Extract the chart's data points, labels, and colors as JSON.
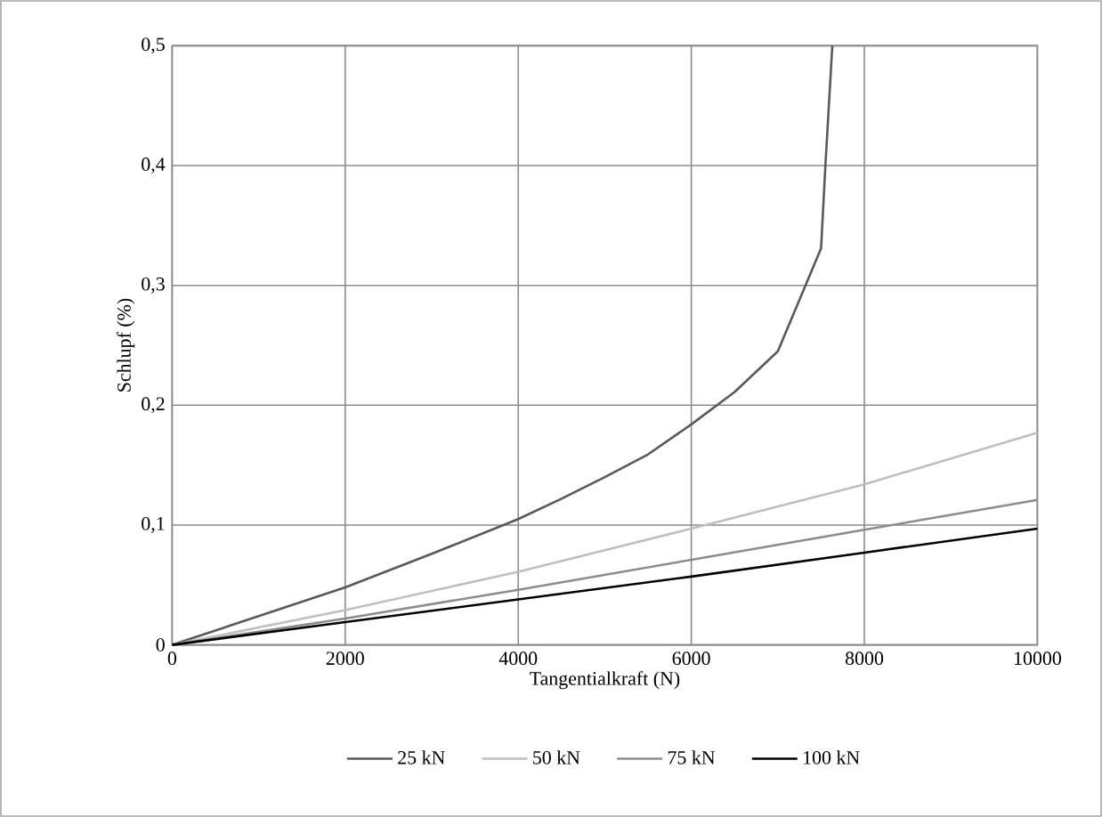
{
  "chart_data": {
    "type": "line",
    "xlabel": "Tangentialkraft (N)",
    "ylabel": "Schlupf (%)",
    "xlim": [
      0,
      10000
    ],
    "xticks": [
      0,
      2000,
      4000,
      6000,
      8000,
      10000
    ],
    "ylim": [
      0,
      0.5
    ],
    "yticks": [
      0,
      {
        "value": 0.1,
        "label": "0,1"
      },
      {
        "value": 0.2,
        "label": "0,2"
      },
      {
        "value": 0.3,
        "label": "0,3"
      },
      {
        "value": 0.4,
        "label": "0,4"
      },
      {
        "value": 0.5,
        "label": "0,5"
      }
    ],
    "grid": true,
    "legend": "bottom",
    "marker": "none",
    "line_style": "solid",
    "series": [
      {
        "name": "25 kN",
        "color": "#595959",
        "x": [
          0,
          1000,
          2000,
          3000,
          4000,
          4500,
          5000,
          5500,
          6000,
          6500,
          7000,
          7500,
          7550,
          7630
        ],
        "values": [
          0,
          0.024,
          0.048,
          0.076,
          0.105,
          0.122,
          0.14,
          0.159,
          0.184,
          0.211,
          0.245,
          0.331,
          0.4,
          0.5
        ]
      },
      {
        "name": "50 kN",
        "color": "#bfbfbf",
        "x": [
          0,
          2000,
          4000,
          6000,
          8000,
          10000
        ],
        "values": [
          0,
          0.029,
          0.061,
          0.097,
          0.134,
          0.177
        ]
      },
      {
        "name": "75 kN",
        "color": "#8c8c8c",
        "x": [
          0,
          2000,
          4000,
          6000,
          8000,
          10000
        ],
        "values": [
          0,
          0.022,
          0.046,
          0.071,
          0.096,
          0.121
        ]
      },
      {
        "name": "100 kN",
        "color": "#000000",
        "x": [
          0,
          2000,
          4000,
          6000,
          8000,
          10000
        ],
        "values": [
          0,
          0.019,
          0.038,
          0.057,
          0.077,
          0.097
        ]
      }
    ]
  }
}
